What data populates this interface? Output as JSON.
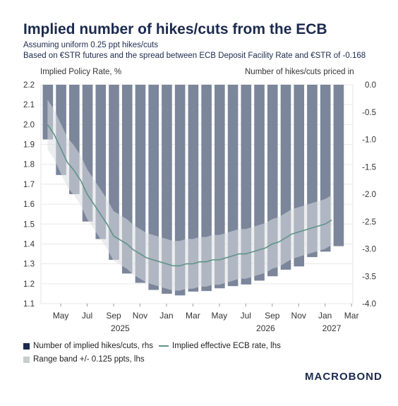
{
  "header": {
    "title": "Implied number of hikes/cuts from the ECB",
    "subtitle1": "Assuming uniform 0.25 ppt hikes/cuts",
    "subtitle2": "Based on €STR futures and the spread between ECB Deposit Facility Rate and €STR of -0.168"
  },
  "legend": {
    "bars": "Number of implied hikes/cuts, rhs",
    "line": "Implied effective ECB rate, lhs",
    "band": "Range band +/- 0.125 ppts, lhs"
  },
  "logo": "MACROBOND",
  "chart_data": {
    "type": "bar",
    "title": "Implied number of hikes/cuts from the ECB",
    "ylabel_left": "Implied Policy Rate, %",
    "ylabel_right": "Number of hikes/cuts priced in",
    "ylim_left": [
      1.1,
      2.2
    ],
    "ylim_right": [
      -4.0,
      0.0
    ],
    "yticks_left": [
      "2.2",
      "2.1",
      "2.0",
      "1.9",
      "1.8",
      "1.7",
      "1.6",
      "1.5",
      "1.4",
      "1.3",
      "1.2",
      "1.1"
    ],
    "yticks_right": [
      "0.0",
      "-0.5",
      "-1.0",
      "-1.5",
      "-2.0",
      "-2.5",
      "-3.0",
      "-3.5",
      "-4.0"
    ],
    "xticks": [
      "May",
      "Jul",
      "Sep",
      "Nov",
      "Jan",
      "Mar",
      "May",
      "Jul",
      "Sep",
      "Nov",
      "Jan",
      "Mar"
    ],
    "year_labels": [
      "2025",
      "2026",
      "2027"
    ],
    "x_start": "2025-04",
    "x_end": "2027-03",
    "bars": {
      "name": "Number of implied hikes/cuts, rhs",
      "axis": "right",
      "color": "#7b869b",
      "values": [
        -1.0,
        -1.65,
        -2.0,
        -2.5,
        -2.82,
        -3.2,
        -3.45,
        -3.62,
        -3.75,
        -3.82,
        -3.85,
        -3.78,
        -3.77,
        -3.72,
        -3.68,
        -3.65,
        -3.58,
        -3.5,
        -3.38,
        -3.32,
        -3.15,
        -3.05,
        -2.95
      ]
    },
    "series": [
      {
        "name": "Implied effective ECB rate, lhs",
        "axis": "left",
        "color": "#5e9488",
        "x_months": [
          0.0,
          0.5,
          1.0,
          1.5,
          2.0,
          2.5,
          3.0,
          3.5,
          4.0,
          4.5,
          5.0,
          5.5,
          6.0,
          6.5,
          7.0,
          7.5,
          8.0,
          8.5,
          9.0,
          9.5,
          10.0,
          10.5,
          11.0,
          11.5,
          12.0,
          12.5,
          13.0,
          13.5,
          14.0,
          14.5,
          15.0,
          15.5,
          16.0,
          16.5,
          17.0,
          17.5,
          18.0,
          18.5,
          19.0,
          19.5,
          20.0,
          20.5,
          21.0,
          21.5
        ],
        "values": [
          2.0,
          1.95,
          1.88,
          1.81,
          1.77,
          1.72,
          1.65,
          1.6,
          1.55,
          1.5,
          1.44,
          1.42,
          1.4,
          1.37,
          1.35,
          1.33,
          1.32,
          1.31,
          1.3,
          1.29,
          1.29,
          1.3,
          1.3,
          1.31,
          1.31,
          1.32,
          1.32,
          1.33,
          1.34,
          1.35,
          1.35,
          1.36,
          1.37,
          1.38,
          1.4,
          1.41,
          1.43,
          1.45,
          1.46,
          1.47,
          1.48,
          1.49,
          1.5,
          1.52
        ]
      }
    ],
    "band": {
      "name": "Range band +/- 0.125 ppts, lhs",
      "color": "#dcdfe1",
      "width": 0.125
    },
    "grid": true
  }
}
